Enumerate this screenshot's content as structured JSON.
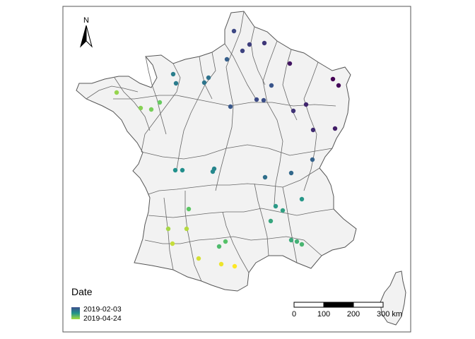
{
  "map": {
    "legend": {
      "title": "Date",
      "min_label": "2019-02-03",
      "max_label": "2019-04-24"
    },
    "scale_bar": {
      "labels": [
        "0",
        "100",
        "200",
        "300 km"
      ]
    },
    "north_arrow": {
      "label": "N",
      "icon": "north-arrow-icon"
    },
    "colors": {
      "land": "#f2f2f2",
      "border": "#555555",
      "gradient": [
        "#440154",
        "#3b528b",
        "#21918c",
        "#5ec962",
        "#fde725"
      ]
    },
    "points": [
      {
        "date": "2019-02-03"
      },
      {
        "date": "2019-02-05"
      },
      {
        "date": "2019-02-08"
      },
      {
        "date": "2019-02-10"
      },
      {
        "date": "2019-02-12"
      },
      {
        "date": "2019-02-13"
      },
      {
        "date": "2019-02-15"
      },
      {
        "date": "2019-02-16"
      },
      {
        "date": "2019-02-18"
      },
      {
        "date": "2019-02-19"
      },
      {
        "date": "2019-02-20"
      },
      {
        "date": "2019-02-21"
      },
      {
        "date": "2019-02-22"
      },
      {
        "date": "2019-02-24"
      },
      {
        "date": "2019-02-25"
      },
      {
        "date": "2019-02-27"
      },
      {
        "date": "2019-02-28"
      },
      {
        "date": "2019-03-02"
      },
      {
        "date": "2019-03-04"
      },
      {
        "date": "2019-03-05"
      },
      {
        "date": "2019-03-06"
      },
      {
        "date": "2019-03-08"
      },
      {
        "date": "2019-03-09"
      },
      {
        "date": "2019-03-11"
      },
      {
        "date": "2019-03-12"
      },
      {
        "date": "2019-03-14"
      },
      {
        "date": "2019-03-15"
      },
      {
        "date": "2019-03-17"
      },
      {
        "date": "2019-03-18"
      },
      {
        "date": "2019-03-20"
      },
      {
        "date": "2019-03-22"
      },
      {
        "date": "2019-03-24"
      },
      {
        "date": "2019-03-26"
      },
      {
        "date": "2019-03-28"
      },
      {
        "date": "2019-03-30"
      },
      {
        "date": "2019-04-01"
      },
      {
        "date": "2019-04-03"
      },
      {
        "date": "2019-04-05"
      },
      {
        "date": "2019-04-07"
      },
      {
        "date": "2019-04-09"
      },
      {
        "date": "2019-04-11"
      },
      {
        "date": "2019-04-13"
      },
      {
        "date": "2019-04-15"
      },
      {
        "date": "2019-04-17"
      },
      {
        "date": "2019-04-19"
      },
      {
        "date": "2019-04-22"
      },
      {
        "date": "2019-04-24"
      }
    ]
  }
}
